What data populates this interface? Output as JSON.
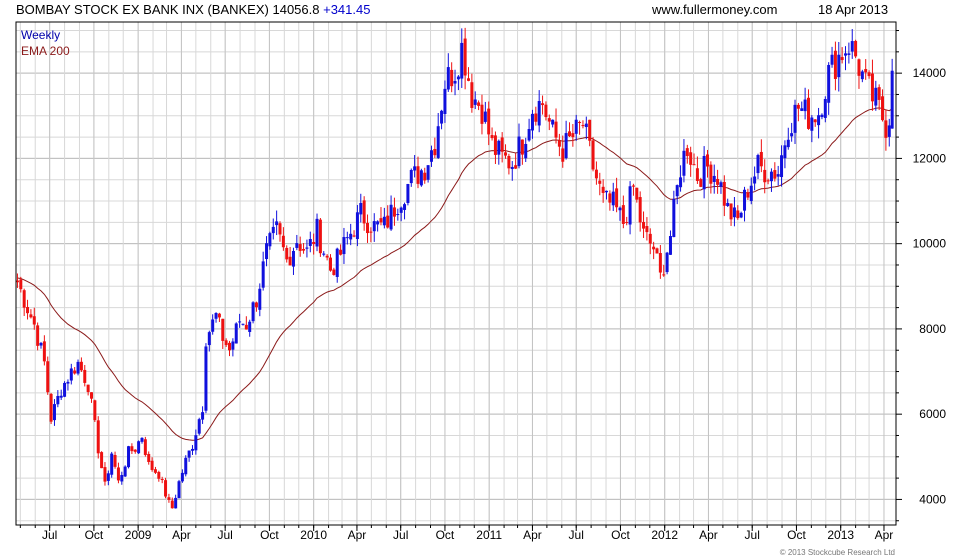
{
  "header": {
    "title": "BOMBAY STOCK EX BANK INX (BANKEX)",
    "last": "14056.8",
    "change": "+341.45",
    "site": "www.fullermoney.com",
    "date": "18 Apr 2013"
  },
  "footer": {
    "copyright": "© 2013 Stockcube Research Ltd"
  },
  "colors": {
    "up": "#1010dd",
    "down": "#ee1111",
    "ema": "#8b1a1a",
    "grid": "#d8d8d8",
    "axis": "#000000"
  },
  "chart_data": {
    "type": "candlestick",
    "frequency": "Weekly",
    "legend": [
      "Weekly",
      "EMA 200"
    ],
    "legend_position": "top-left",
    "grid": true,
    "ylim": [
      3400,
      15200
    ],
    "y_ticks": [
      4000,
      6000,
      8000,
      10000,
      12000,
      14000
    ],
    "y_tick_labels": [
      "4000",
      "6000",
      "8000",
      "10000",
      "12000",
      "14000"
    ],
    "x_tick_labels": [
      "Jul",
      "Oct",
      "2009",
      "Apr",
      "Jul",
      "Oct",
      "2010",
      "Apr",
      "Jul",
      "Oct",
      "2011",
      "Apr",
      "Jul",
      "Oct",
      "2012",
      "Apr",
      "Jul",
      "Oct",
      "2013",
      "Apr"
    ],
    "x_tick_dates": [
      "2008-07-01",
      "2008-10-01",
      "2009-01-01",
      "2009-04-01",
      "2009-07-01",
      "2009-10-01",
      "2010-01-01",
      "2010-04-01",
      "2010-07-01",
      "2010-10-01",
      "2011-01-01",
      "2011-04-01",
      "2011-07-01",
      "2011-10-01",
      "2012-01-01",
      "2012-04-01",
      "2012-07-01",
      "2012-10-01",
      "2013-01-01",
      "2013-04-01"
    ],
    "x_range": [
      "2008-04-22",
      "2013-04-26"
    ],
    "close_anchors": [
      [
        "2008-04-25",
        9100
      ],
      [
        "2008-05-09",
        8700
      ],
      [
        "2008-05-30",
        8100
      ],
      [
        "2008-06-20",
        7200
      ],
      [
        "2008-07-04",
        5900
      ],
      [
        "2008-07-25",
        6600
      ],
      [
        "2008-08-15",
        7000
      ],
      [
        "2008-08-29",
        7200
      ],
      [
        "2008-09-19",
        6700
      ],
      [
        "2008-10-10",
        5200
      ],
      [
        "2008-10-24",
        4300
      ],
      [
        "2008-11-07",
        5100
      ],
      [
        "2008-11-21",
        4400
      ],
      [
        "2008-12-12",
        5100
      ],
      [
        "2008-12-26",
        5200
      ],
      [
        "2009-01-09",
        5500
      ],
      [
        "2009-01-23",
        4800
      ],
      [
        "2009-02-13",
        4600
      ],
      [
        "2009-03-06",
        3900
      ],
      [
        "2009-03-13",
        3800
      ],
      [
        "2009-03-27",
        4400
      ],
      [
        "2009-04-10",
        4900
      ],
      [
        "2009-04-24",
        5300
      ],
      [
        "2009-05-08",
        5900
      ],
      [
        "2009-05-15",
        6200
      ],
      [
        "2009-05-22",
        7800
      ],
      [
        "2009-06-12",
        8300
      ],
      [
        "2009-06-26",
        7800
      ],
      [
        "2009-07-10",
        7500
      ],
      [
        "2009-07-31",
        8200
      ],
      [
        "2009-08-14",
        8100
      ],
      [
        "2009-09-04",
        8700
      ],
      [
        "2009-09-25",
        9800
      ],
      [
        "2009-10-16",
        10300
      ],
      [
        "2009-11-06",
        9600
      ],
      [
        "2009-11-27",
        10100
      ],
      [
        "2009-12-18",
        9800
      ],
      [
        "2010-01-08",
        10300
      ],
      [
        "2010-02-05",
        9400
      ],
      [
        "2010-02-19",
        9600
      ],
      [
        "2010-03-12",
        10100
      ],
      [
        "2010-04-09",
        10700
      ],
      [
        "2010-05-07",
        10400
      ],
      [
        "2010-05-28",
        10400
      ],
      [
        "2010-06-25",
        11000
      ],
      [
        "2010-07-23",
        11500
      ],
      [
        "2010-08-20",
        11800
      ],
      [
        "2010-09-10",
        12400
      ],
      [
        "2010-10-01",
        13800
      ],
      [
        "2010-10-22",
        14100
      ],
      [
        "2010-11-05",
        14600
      ],
      [
        "2010-11-12",
        14300
      ],
      [
        "2010-11-26",
        13500
      ],
      [
        "2010-12-17",
        13200
      ],
      [
        "2011-01-07",
        12300
      ],
      [
        "2011-01-28",
        12000
      ],
      [
        "2011-02-18",
        11900
      ],
      [
        "2011-03-11",
        12400
      ],
      [
        "2011-04-01",
        13200
      ],
      [
        "2011-04-22",
        13300
      ],
      [
        "2011-05-13",
        12600
      ],
      [
        "2011-06-03",
        12200
      ],
      [
        "2011-06-24",
        12500
      ],
      [
        "2011-07-15",
        12800
      ],
      [
        "2011-08-05",
        11800
      ],
      [
        "2011-08-26",
        11000
      ],
      [
        "2011-09-16",
        10900
      ],
      [
        "2011-10-07",
        10500
      ],
      [
        "2011-10-28",
        11300
      ],
      [
        "2011-11-18",
        10200
      ],
      [
        "2011-12-09",
        9900
      ],
      [
        "2011-12-23",
        9200
      ],
      [
        "2012-01-13",
        10200
      ],
      [
        "2012-02-03",
        11800
      ],
      [
        "2012-02-17",
        12300
      ],
      [
        "2012-03-09",
        11600
      ],
      [
        "2012-03-30",
        11800
      ],
      [
        "2012-04-20",
        11600
      ],
      [
        "2012-05-11",
        10800
      ],
      [
        "2012-05-31",
        10500
      ],
      [
        "2012-06-22",
        11300
      ],
      [
        "2012-07-13",
        11800
      ],
      [
        "2012-08-03",
        11700
      ],
      [
        "2012-08-24",
        11700
      ],
      [
        "2012-09-14",
        12800
      ],
      [
        "2012-10-05",
        13200
      ],
      [
        "2012-10-26",
        13000
      ],
      [
        "2012-11-16",
        13100
      ],
      [
        "2012-12-07",
        14000
      ],
      [
        "2012-12-28",
        14400
      ],
      [
        "2013-01-18",
        14700
      ],
      [
        "2013-02-01",
        14400
      ],
      [
        "2013-02-22",
        13700
      ],
      [
        "2013-03-15",
        13300
      ],
      [
        "2013-04-05",
        12800
      ],
      [
        "2013-04-12",
        13000
      ],
      [
        "2013-04-18",
        14056.8
      ]
    ]
  }
}
